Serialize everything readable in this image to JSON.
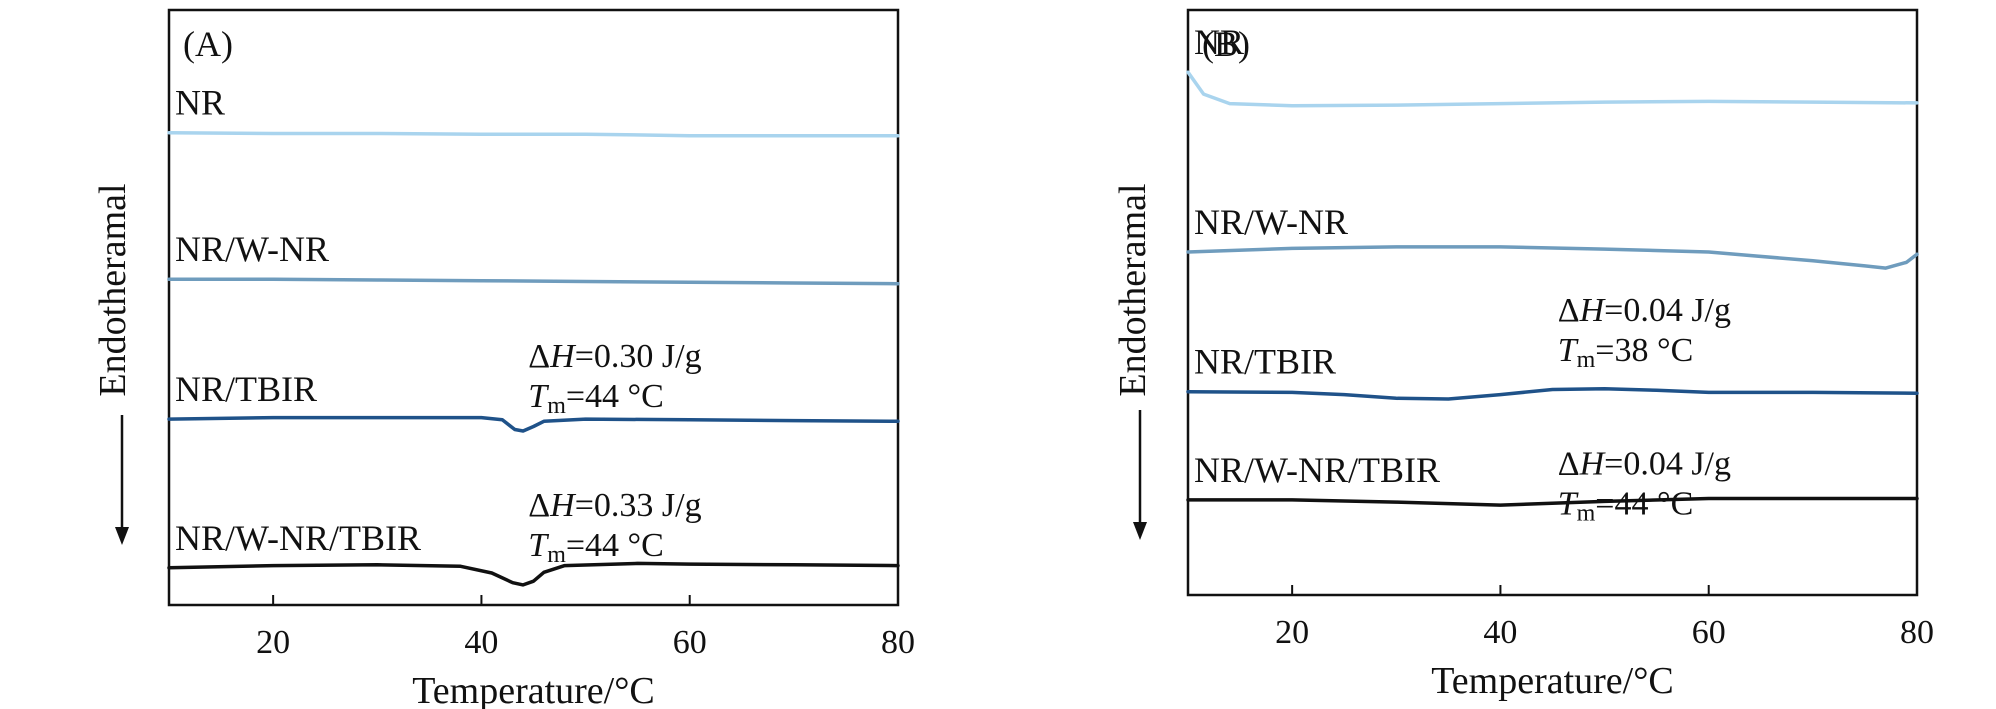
{
  "chart_data": [
    {
      "type": "line",
      "panel_label": "(A)",
      "xlabel": "Temperature/°C",
      "ylabel": "Endotheramal",
      "xlim": [
        10,
        80
      ],
      "x_ticks": [
        20,
        40,
        60,
        80
      ],
      "y_ticks": [],
      "grid": false,
      "series": [
        {
          "name": "NR",
          "color": "#a9d4ee",
          "points": [
            [
              10,
              6.35
            ],
            [
              20,
              6.34
            ],
            [
              30,
              6.34
            ],
            [
              40,
              6.33
            ],
            [
              50,
              6.33
            ],
            [
              60,
              6.31
            ],
            [
              70,
              6.31
            ],
            [
              80,
              6.31
            ]
          ]
        },
        {
          "name": "NR/W-NR",
          "color": "#6f9cbd",
          "points": [
            [
              10,
              4.38
            ],
            [
              20,
              4.38
            ],
            [
              30,
              4.37
            ],
            [
              40,
              4.36
            ],
            [
              50,
              4.35
            ],
            [
              60,
              4.34
            ],
            [
              70,
              4.33
            ],
            [
              80,
              4.32
            ]
          ]
        },
        {
          "name": "NR/TBIR",
          "color": "#1f5289",
          "points": [
            [
              10,
              2.5
            ],
            [
              20,
              2.52
            ],
            [
              30,
              2.52
            ],
            [
              40,
              2.52
            ],
            [
              42,
              2.49
            ],
            [
              43.2,
              2.36
            ],
            [
              44,
              2.34
            ],
            [
              45,
              2.4
            ],
            [
              46,
              2.47
            ],
            [
              50,
              2.5
            ],
            [
              60,
              2.49
            ],
            [
              70,
              2.48
            ],
            [
              80,
              2.47
            ]
          ]
        },
        {
          "name": "NR/W-NR/TBIR",
          "color": "#111111",
          "points": [
            [
              10,
              0.5
            ],
            [
              20,
              0.53
            ],
            [
              30,
              0.54
            ],
            [
              38,
              0.52
            ],
            [
              41,
              0.43
            ],
            [
              43,
              0.3
            ],
            [
              44,
              0.27
            ],
            [
              45,
              0.32
            ],
            [
              46,
              0.44
            ],
            [
              48,
              0.53
            ],
            [
              55,
              0.56
            ],
            [
              60,
              0.55
            ],
            [
              70,
              0.54
            ],
            [
              80,
              0.53
            ]
          ]
        }
      ],
      "annotations": [
        {
          "dh_prefix": "Δ",
          "dh_var": "H",
          "dh_value": "=0.30 J/g",
          "tm_var": "T",
          "tm_sub": "m",
          "tm_value": "=44 °C",
          "x": 44.5,
          "y": 3.2
        },
        {
          "dh_prefix": "Δ",
          "dh_var": "H",
          "dh_value": "=0.33 J/g",
          "tm_var": "T",
          "tm_sub": "m",
          "tm_value": "=44 °C",
          "x": 44.5,
          "y": 1.2
        }
      ]
    },
    {
      "type": "line",
      "panel_label": "(B)",
      "xlabel": "Temperature/°C",
      "ylabel": "Endotheramal",
      "xlim": [
        10,
        80
      ],
      "x_ticks": [
        20,
        40,
        60,
        80
      ],
      "y_ticks": [],
      "grid": false,
      "series": [
        {
          "name": "NR",
          "color": "#a9d4ee",
          "points": [
            [
              10,
              7.15
            ],
            [
              11.5,
              6.85
            ],
            [
              14,
              6.72
            ],
            [
              20,
              6.69
            ],
            [
              30,
              6.7
            ],
            [
              40,
              6.72
            ],
            [
              50,
              6.74
            ],
            [
              60,
              6.75
            ],
            [
              70,
              6.74
            ],
            [
              80,
              6.73
            ]
          ]
        },
        {
          "name": "NR/W-NR",
          "color": "#6f9cbd",
          "points": [
            [
              10,
              4.69
            ],
            [
              20,
              4.74
            ],
            [
              30,
              4.76
            ],
            [
              40,
              4.76
            ],
            [
              50,
              4.73
            ],
            [
              60,
              4.69
            ],
            [
              70,
              4.57
            ],
            [
              75,
              4.5
            ],
            [
              77,
              4.47
            ],
            [
              79,
              4.55
            ],
            [
              80,
              4.66
            ]
          ]
        },
        {
          "name": "NR/TBIR",
          "color": "#1f5289",
          "points": [
            [
              10,
              2.78
            ],
            [
              20,
              2.77
            ],
            [
              25,
              2.74
            ],
            [
              30,
              2.69
            ],
            [
              35,
              2.68
            ],
            [
              40,
              2.74
            ],
            [
              45,
              2.81
            ],
            [
              50,
              2.82
            ],
            [
              55,
              2.8
            ],
            [
              60,
              2.77
            ],
            [
              70,
              2.77
            ],
            [
              80,
              2.76
            ]
          ]
        },
        {
          "name": "NR/W-NR/TBIR",
          "color": "#111111",
          "points": [
            [
              10,
              1.3
            ],
            [
              20,
              1.3
            ],
            [
              30,
              1.27
            ],
            [
              40,
              1.23
            ],
            [
              50,
              1.28
            ],
            [
              60,
              1.32
            ],
            [
              70,
              1.32
            ],
            [
              80,
              1.32
            ]
          ]
        }
      ],
      "annotations": [
        {
          "dh_prefix": "Δ",
          "dh_var": "H",
          "dh_value": "=0.04 J/g",
          "tm_var": "T",
          "tm_sub": "m",
          "tm_value": "=38 °C",
          "x": 45.5,
          "y": 3.75
        },
        {
          "dh_prefix": "Δ",
          "dh_var": "H",
          "dh_value": "=0.04 J/g",
          "tm_var": "T",
          "tm_sub": "m",
          "tm_value": "=44 °C",
          "x": 45.5,
          "y": 1.65
        }
      ]
    }
  ]
}
